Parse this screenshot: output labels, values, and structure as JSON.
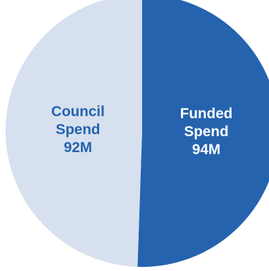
{
  "chart_data": {
    "type": "pie",
    "slices": [
      {
        "label_lines": [
          "Funded",
          "Spend"
        ],
        "value": 94,
        "value_label": "94M",
        "color": "#2563AE",
        "text_color": "#FFFFFF"
      },
      {
        "label_lines": [
          "Council",
          "Spend"
        ],
        "value": 92,
        "value_label": "92M",
        "color": "#D6E0EF",
        "text_color": "#2563AE"
      }
    ],
    "start_position": "top",
    "direction": "clockwise"
  }
}
